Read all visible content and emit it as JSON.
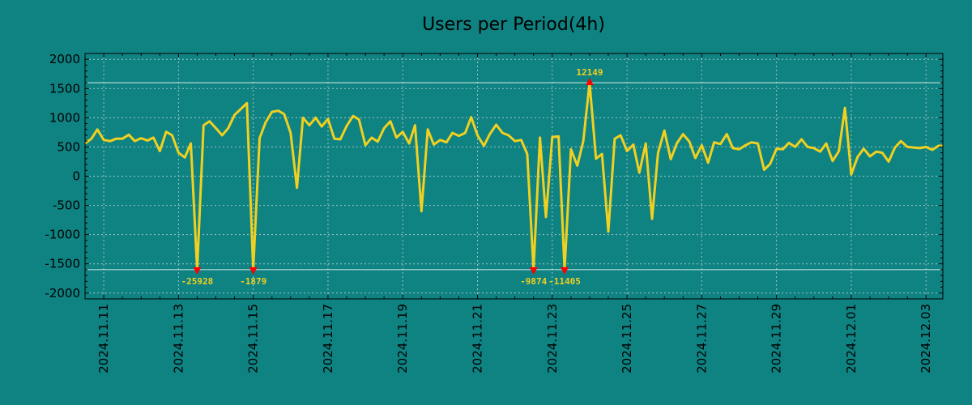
{
  "chart_data": {
    "type": "line",
    "title": "Users per Period(4h)",
    "xlabel": "",
    "ylabel": "",
    "ylim": [
      -2100,
      2100
    ],
    "yticks": [
      2000,
      1500,
      1000,
      500,
      0,
      -500,
      -1000,
      -1500,
      -2000
    ],
    "x_range_days": [
      10.5,
      33.45
    ],
    "x_ticks": [
      {
        "label": "2024.11.11",
        "day": 11
      },
      {
        "label": "2024.11.13",
        "day": 13
      },
      {
        "label": "2024.11.15",
        "day": 15
      },
      {
        "label": "2024.11.17",
        "day": 17
      },
      {
        "label": "2024.11.19",
        "day": 19
      },
      {
        "label": "2024.11.21",
        "day": 21
      },
      {
        "label": "2024.11.23",
        "day": 23
      },
      {
        "label": "2024.11.25",
        "day": 25
      },
      {
        "label": "2024.11.27",
        "day": 27
      },
      {
        "label": "2024.11.29",
        "day": 29
      },
      {
        "label": "2024.12.01",
        "day": 31
      },
      {
        "label": "2024.12.03",
        "day": 33
      }
    ],
    "series": [
      {
        "name": "Users",
        "color": "#f0d020",
        "points": [
          [
            10.5,
            560
          ],
          [
            10.67,
            640
          ],
          [
            10.83,
            800
          ],
          [
            11.0,
            620
          ],
          [
            11.17,
            600
          ],
          [
            11.33,
            640
          ],
          [
            11.5,
            640
          ],
          [
            11.67,
            710
          ],
          [
            11.83,
            600
          ],
          [
            12.0,
            650
          ],
          [
            12.17,
            610
          ],
          [
            12.33,
            660
          ],
          [
            12.5,
            430
          ],
          [
            12.67,
            760
          ],
          [
            12.83,
            700
          ],
          [
            13.0,
            400
          ],
          [
            13.17,
            320
          ],
          [
            13.33,
            560
          ],
          [
            13.5,
            -1600
          ],
          [
            13.67,
            870
          ],
          [
            13.83,
            940
          ],
          [
            14.0,
            820
          ],
          [
            14.17,
            700
          ],
          [
            14.33,
            820
          ],
          [
            14.5,
            1050
          ],
          [
            14.67,
            1150
          ],
          [
            14.83,
            1250
          ],
          [
            15.0,
            -1600
          ],
          [
            15.17,
            650
          ],
          [
            15.33,
            920
          ],
          [
            15.5,
            1100
          ],
          [
            15.67,
            1120
          ],
          [
            15.83,
            1060
          ],
          [
            16.0,
            740
          ],
          [
            16.17,
            -200
          ],
          [
            16.33,
            1000
          ],
          [
            16.5,
            870
          ],
          [
            16.67,
            1000
          ],
          [
            16.83,
            850
          ],
          [
            17.0,
            980
          ],
          [
            17.17,
            640
          ],
          [
            17.33,
            630
          ],
          [
            17.5,
            860
          ],
          [
            17.67,
            1030
          ],
          [
            17.83,
            970
          ],
          [
            18.0,
            530
          ],
          [
            18.17,
            660
          ],
          [
            18.33,
            590
          ],
          [
            18.5,
            820
          ],
          [
            18.67,
            940
          ],
          [
            18.83,
            660
          ],
          [
            19.0,
            760
          ],
          [
            19.17,
            560
          ],
          [
            19.33,
            870
          ],
          [
            19.5,
            -600
          ],
          [
            19.67,
            800
          ],
          [
            19.83,
            540
          ],
          [
            20.0,
            620
          ],
          [
            20.17,
            580
          ],
          [
            20.33,
            740
          ],
          [
            20.5,
            690
          ],
          [
            20.67,
            740
          ],
          [
            20.83,
            1010
          ],
          [
            21.0,
            700
          ],
          [
            21.17,
            520
          ],
          [
            21.33,
            720
          ],
          [
            21.5,
            880
          ],
          [
            21.67,
            740
          ],
          [
            21.83,
            700
          ],
          [
            22.0,
            600
          ],
          [
            22.17,
            620
          ],
          [
            22.33,
            380
          ],
          [
            22.5,
            -1600
          ],
          [
            22.67,
            660
          ],
          [
            22.83,
            -700
          ],
          [
            23.0,
            670
          ],
          [
            23.17,
            680
          ],
          [
            23.33,
            -1600
          ],
          [
            23.5,
            460
          ],
          [
            23.67,
            180
          ],
          [
            23.83,
            600
          ],
          [
            24.0,
            1600
          ],
          [
            24.17,
            300
          ],
          [
            24.33,
            380
          ],
          [
            24.5,
            -950
          ],
          [
            24.67,
            640
          ],
          [
            24.83,
            700
          ],
          [
            25.0,
            430
          ],
          [
            25.17,
            540
          ],
          [
            25.33,
            60
          ],
          [
            25.5,
            560
          ],
          [
            25.67,
            -730
          ],
          [
            25.83,
            400
          ],
          [
            26.0,
            780
          ],
          [
            26.17,
            290
          ],
          [
            26.33,
            560
          ],
          [
            26.5,
            720
          ],
          [
            26.67,
            590
          ],
          [
            26.83,
            310
          ],
          [
            27.0,
            530
          ],
          [
            27.17,
            230
          ],
          [
            27.33,
            580
          ],
          [
            27.5,
            550
          ],
          [
            27.67,
            720
          ],
          [
            27.83,
            480
          ],
          [
            28.0,
            460
          ],
          [
            28.17,
            530
          ],
          [
            28.33,
            580
          ],
          [
            28.5,
            560
          ],
          [
            28.67,
            110
          ],
          [
            28.83,
            210
          ],
          [
            29.0,
            470
          ],
          [
            29.17,
            460
          ],
          [
            29.33,
            570
          ],
          [
            29.5,
            500
          ],
          [
            29.67,
            630
          ],
          [
            29.83,
            500
          ],
          [
            30.0,
            480
          ],
          [
            30.17,
            420
          ],
          [
            30.33,
            560
          ],
          [
            30.5,
            260
          ],
          [
            30.67,
            430
          ],
          [
            30.83,
            1170
          ],
          [
            31.0,
            30
          ],
          [
            31.17,
            330
          ],
          [
            31.33,
            470
          ],
          [
            31.5,
            340
          ],
          [
            31.67,
            420
          ],
          [
            31.83,
            400
          ],
          [
            32.0,
            250
          ],
          [
            32.17,
            490
          ],
          [
            32.33,
            600
          ],
          [
            32.5,
            500
          ],
          [
            32.67,
            490
          ],
          [
            32.83,
            480
          ],
          [
            33.0,
            500
          ],
          [
            33.17,
            450
          ],
          [
            33.33,
            520
          ],
          [
            33.45,
            520
          ]
        ]
      }
    ],
    "ref_lines": [
      1600,
      -1600
    ],
    "annotations": [
      {
        "day": 13.5,
        "y": -1600,
        "label": "-25928",
        "type": "min"
      },
      {
        "day": 15.0,
        "y": -1600,
        "label": "-1879",
        "type": "min"
      },
      {
        "day": 22.5,
        "y": -1600,
        "label": "-9874",
        "type": "min"
      },
      {
        "day": 23.33,
        "y": -1600,
        "label": "-11405",
        "type": "min"
      },
      {
        "day": 24.0,
        "y": 1600,
        "label": "12149",
        "type": "max"
      }
    ],
    "grid": true,
    "background": "#0f8282",
    "annotation_color": "#f0d020",
    "marker_color": "#ff0000"
  }
}
